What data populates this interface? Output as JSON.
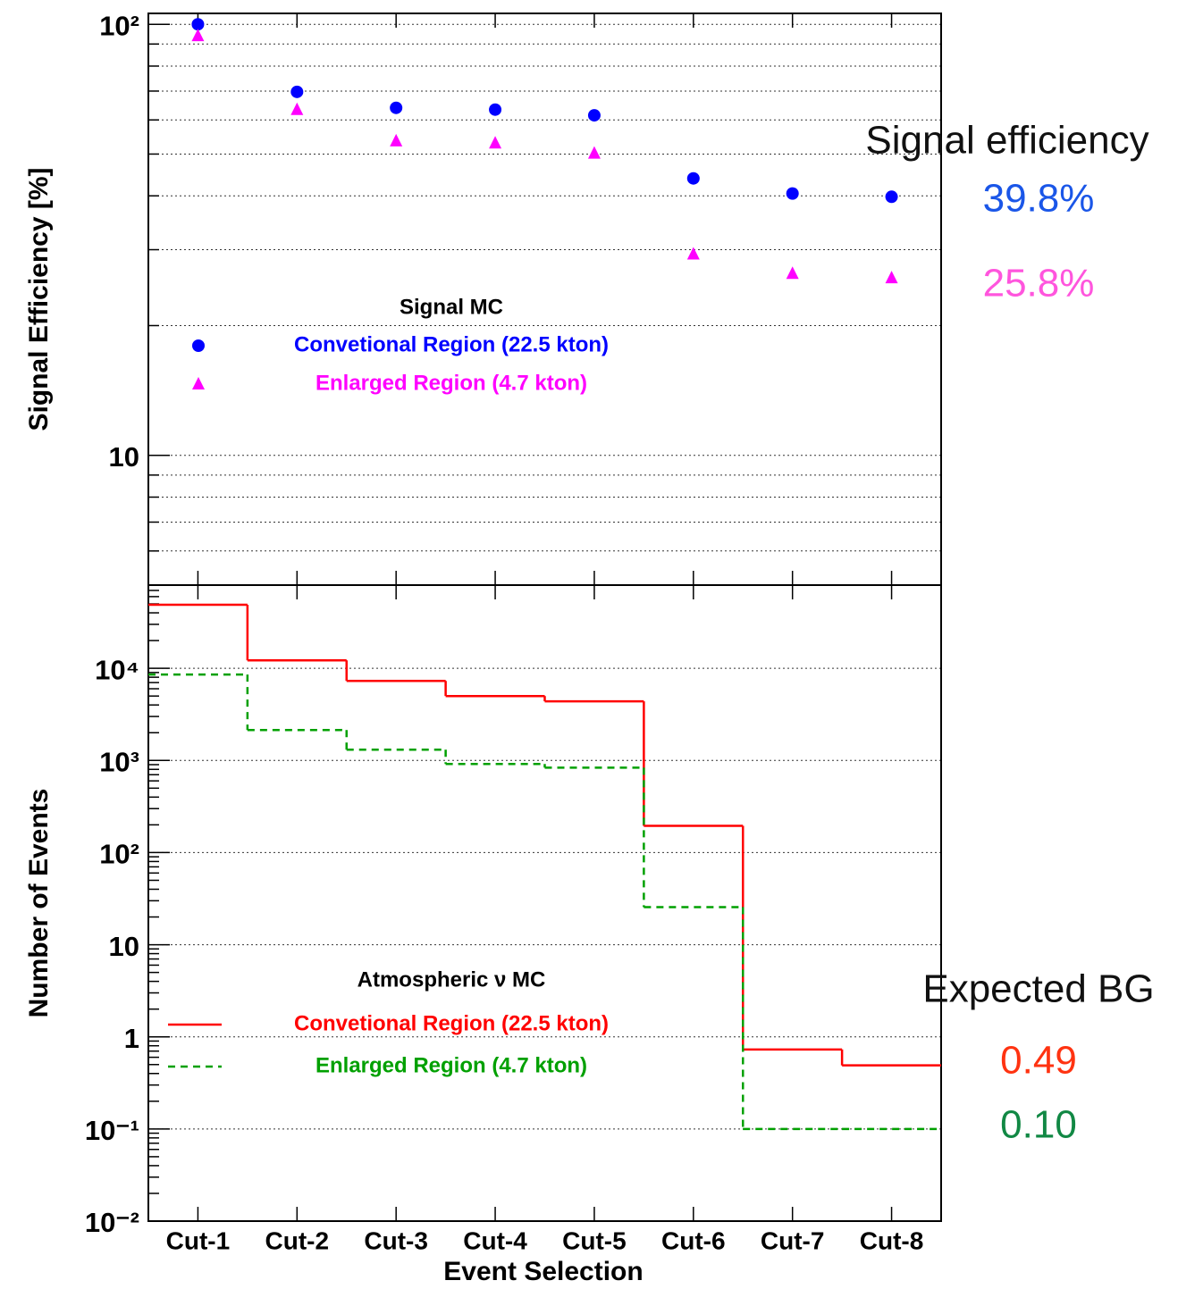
{
  "chart_data": [
    {
      "type": "scatter",
      "ylabel": "Signal Efficiency [%]",
      "log_y": true,
      "grid": true,
      "minor_grid": true,
      "ylim": [
        5,
        106
      ],
      "yticks": [
        {
          "value": 10,
          "label": "10"
        },
        {
          "value": 100,
          "label": "10²"
        }
      ],
      "legend_title": "Signal MC",
      "series": [
        {
          "name": "Convetional Region (22.5 kton)",
          "color": "#0000ff",
          "marker": "circle",
          "values": [
            100,
            69.7,
            64,
            63.4,
            61.5,
            43.9,
            40.5,
            39.8
          ]
        },
        {
          "name": "Enlarged Region (4.7 kton)",
          "color": "#ff00ff",
          "marker": "triangle",
          "values": [
            94,
            63.4,
            53.6,
            53,
            50.2,
            29.3,
            26.4,
            25.8
          ]
        }
      ],
      "annotations": [
        {
          "text": "Signal efficiency",
          "color": "#111111"
        },
        {
          "text": "39.8%",
          "color": "#1a56e8"
        },
        {
          "text": "25.8%",
          "color": "#ff55dd"
        }
      ]
    },
    {
      "type": "step",
      "xlabel": "Event Selection",
      "ylabel": "Number of Events",
      "log_y": true,
      "grid": true,
      "minor_grid": false,
      "categories": [
        "Cut-1",
        "Cut-2",
        "Cut-3",
        "Cut-4",
        "Cut-5",
        "Cut-6",
        "Cut-7",
        "Cut-8"
      ],
      "ylim": [
        0.01,
        80000
      ],
      "yticks": [
        {
          "value": 0.01,
          "label": "10⁻²"
        },
        {
          "value": 0.1,
          "label": "10⁻¹"
        },
        1,
        10,
        {
          "value": 100,
          "label": "10²"
        },
        {
          "value": 1000,
          "label": "10³"
        },
        {
          "value": 10000,
          "label": "10⁴"
        }
      ],
      "legend_title": "Atmospheric ν MC",
      "series": [
        {
          "name": "Convetional Region (22.5 kton)",
          "color": "#ff0000",
          "dashed": false,
          "values": [
            48900,
            12200,
            7300,
            5000,
            4380,
            195,
            0.73,
            0.49
          ]
        },
        {
          "name": "Enlarged Region (4.7 kton)",
          "color": "#00a000",
          "dashed": true,
          "values": [
            8550,
            2140,
            1310,
            915,
            836,
            25.6,
            0.1,
            0.1
          ]
        }
      ],
      "annotations": [
        {
          "text": "Expected BG",
          "color": "#111111"
        },
        {
          "text": "0.49",
          "color": "#ff3311"
        },
        {
          "text": "0.10",
          "color": "#118844"
        }
      ]
    }
  ]
}
